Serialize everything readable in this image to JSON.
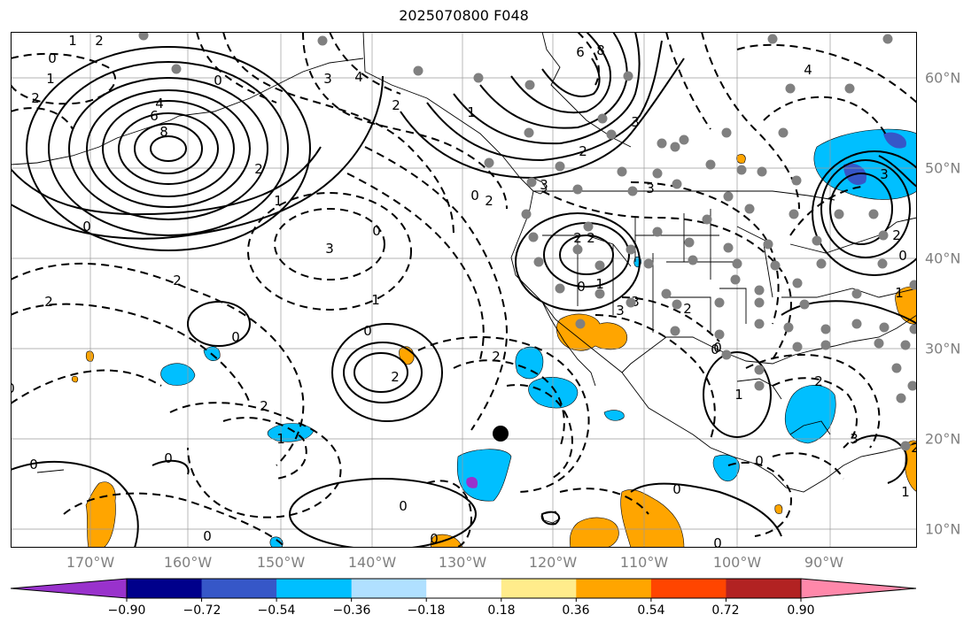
{
  "title": "2025070800 F048",
  "lon_labels": [
    "170°W",
    "160°W",
    "150°W",
    "140°W",
    "130°W",
    "120°W",
    "110°W",
    "100°W",
    "90°W"
  ],
  "lat_labels": [
    "60°N",
    "50°N",
    "40°N",
    "30°N",
    "20°N",
    "10°N"
  ],
  "colorbar": {
    "colors": [
      "#9932cc",
      "#00008b",
      "#3657c8",
      "#00bfff",
      "#b0e0ff",
      "#ffffff",
      "#ffec8b",
      "#ffa500",
      "#ff4500",
      "#b22222",
      "#ff88aa",
      "#ff88aa"
    ],
    "tick_labels": [
      "−0.90",
      "−0.72",
      "−0.54",
      "−0.36",
      "−0.18",
      "0.18",
      "0.36",
      "0.54",
      "0.72",
      "0.90"
    ]
  },
  "contour_labels": [
    "1",
    "2",
    "0",
    "1",
    "2",
    "4",
    "6",
    "8",
    "2",
    "1",
    "0",
    "0",
    "3",
    "4",
    "2",
    "6",
    "8",
    "3",
    "2",
    "3",
    "1",
    "2",
    "3",
    "0",
    "2",
    "2",
    "1",
    "4",
    "3",
    "3",
    "0",
    "2",
    "2",
    "3",
    "3",
    "2",
    "1",
    "0",
    "0",
    "0",
    "2",
    "0",
    "1",
    "2",
    "0",
    "1",
    "0",
    "2",
    "0",
    "0",
    "0",
    "0",
    "2",
    "1",
    "0",
    "0",
    "3",
    "1",
    "2",
    "2",
    "0",
    "0",
    "0"
  ],
  "colors": {
    "shading_negative": "#00bfff",
    "shading_positive": "#ffa500",
    "contour": "#000000",
    "station_dots": "#808080",
    "axis_labels": "#808080"
  }
}
